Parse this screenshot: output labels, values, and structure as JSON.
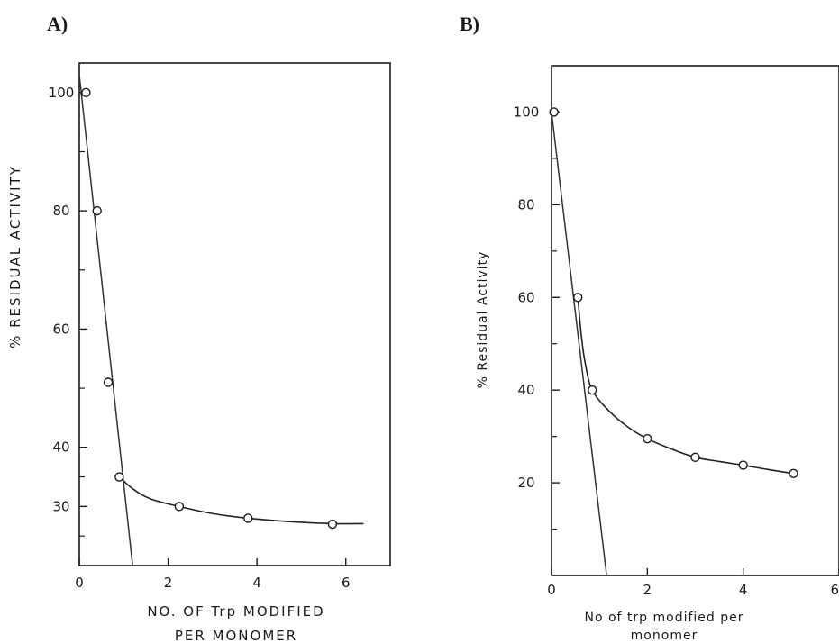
{
  "figure": {
    "panel_a_label": "A)",
    "panel_b_label": "B)"
  },
  "chart_data": [
    {
      "panel": "A)",
      "type": "scatter",
      "title": "",
      "xlabel_lines": [
        "NO. OF Trp MODIFIED",
        "PER MONOMER"
      ],
      "ylabel": "% RESIDUAL ACTIVITY",
      "x_ticks": [
        0,
        2,
        4,
        6
      ],
      "y_ticks": [
        100,
        80,
        60,
        40,
        30
      ],
      "xlim": [
        0,
        7
      ],
      "ylim": [
        20,
        105
      ],
      "grid": false,
      "points": {
        "x": [
          0.15,
          0.4,
          0.65,
          0.9,
          2.25,
          3.8,
          5.7
        ],
        "y": [
          100,
          80,
          51,
          35,
          30,
          28,
          27
        ]
      },
      "extrapolation_line": {
        "x": [
          0.0,
          1.2
        ],
        "y": [
          103,
          20
        ]
      },
      "curve": {
        "x": [
          0.9,
          1.2,
          1.6,
          2.25,
          3.0,
          3.8,
          4.8,
          5.7,
          6.4
        ],
        "y": [
          35,
          33,
          31.3,
          30,
          28.8,
          28,
          27.4,
          27.1,
          27.1
        ]
      }
    },
    {
      "panel": "B)",
      "type": "scatter",
      "title": "",
      "xlabel_lines": [
        "No of trp modified per",
        "monomer"
      ],
      "ylabel": "% Residual Activity",
      "x_ticks": [
        0,
        2,
        4,
        6
      ],
      "y_ticks": [
        100,
        80,
        60,
        40,
        20
      ],
      "xlim": [
        0,
        6
      ],
      "ylim": [
        0,
        110
      ],
      "grid": false,
      "points": {
        "x": [
          0.05,
          0.55,
          0.85,
          2.0,
          3.0,
          4.0,
          5.05
        ],
        "y": [
          100,
          60,
          40,
          29.5,
          25.5,
          23.8,
          22
        ]
      },
      "extrapolation_line": {
        "x": [
          0.0,
          1.15
        ],
        "y": [
          100,
          0
        ]
      },
      "curve": {
        "x": [
          0.55,
          0.62,
          0.7,
          0.85,
          1.2,
          1.6,
          2.0,
          2.5,
          3.0,
          3.5,
          4.0,
          4.5,
          5.05
        ],
        "y": [
          60,
          52,
          46,
          40,
          35.5,
          32,
          29.5,
          27.3,
          25.5,
          24.6,
          23.8,
          22.9,
          22
        ]
      }
    }
  ]
}
